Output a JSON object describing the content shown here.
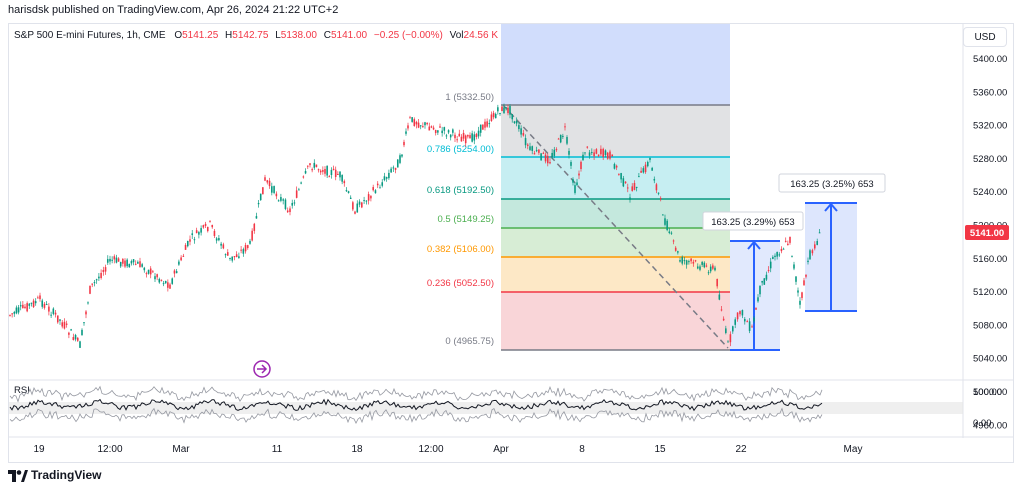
{
  "publisher": "harisdsk published on TradingView.com, Apr 26, 2024 21:22 UTC+2",
  "legend": {
    "symbol": "S&P 500 E-mini Futures, 1h, CME",
    "o_label": "O",
    "o": "5141.25",
    "h_label": "H",
    "h": "5142.75",
    "l_label": "L",
    "l": "5138.00",
    "c_label": "C",
    "c": "5141.00",
    "change": "−0.25 (−0.00%)",
    "vol_label": "Vol",
    "vol": "24.56 K"
  },
  "currency": "USD",
  "price_axis": [
    "5400.00",
    "5360.00",
    "5320.00",
    "5280.00",
    "5240.00",
    "5200.00",
    "5160.00",
    "5120.00",
    "5080.00",
    "5040.00",
    "5000.00",
    "4960.00"
  ],
  "last_price": "5141.00",
  "rsi": {
    "label": "RSI",
    "ticks": [
      "100.00",
      "0.00"
    ]
  },
  "time_axis": [
    "19",
    "12:00",
    "Mar",
    "11",
    "18",
    "12:00",
    "Apr",
    "8",
    "15",
    "22",
    "May"
  ],
  "fib_levels": [
    {
      "label": "1 (5332.50)",
      "color": "#787b86"
    },
    {
      "label": "0.786 (5254.00)",
      "color": "#00bcd4"
    },
    {
      "label": "0.618 (5192.50)",
      "color": "#089981"
    },
    {
      "label": "0.5 (5149.25)",
      "color": "#4caf50"
    },
    {
      "label": "0.382 (5106.00)",
      "color": "#ff9800"
    },
    {
      "label": "0.236 (5052.50)",
      "color": "#f23645"
    },
    {
      "label": "0 (4965.75)",
      "color": "#787b86"
    }
  ],
  "measure_1": "163.25 (3.29%) 653",
  "measure_2": "163.25 (3.25%) 653",
  "brand": "TradingView",
  "colors": {
    "up": "#089981",
    "down": "#f23645",
    "accent": "#2962ff",
    "rsi_line": "#131722"
  }
}
